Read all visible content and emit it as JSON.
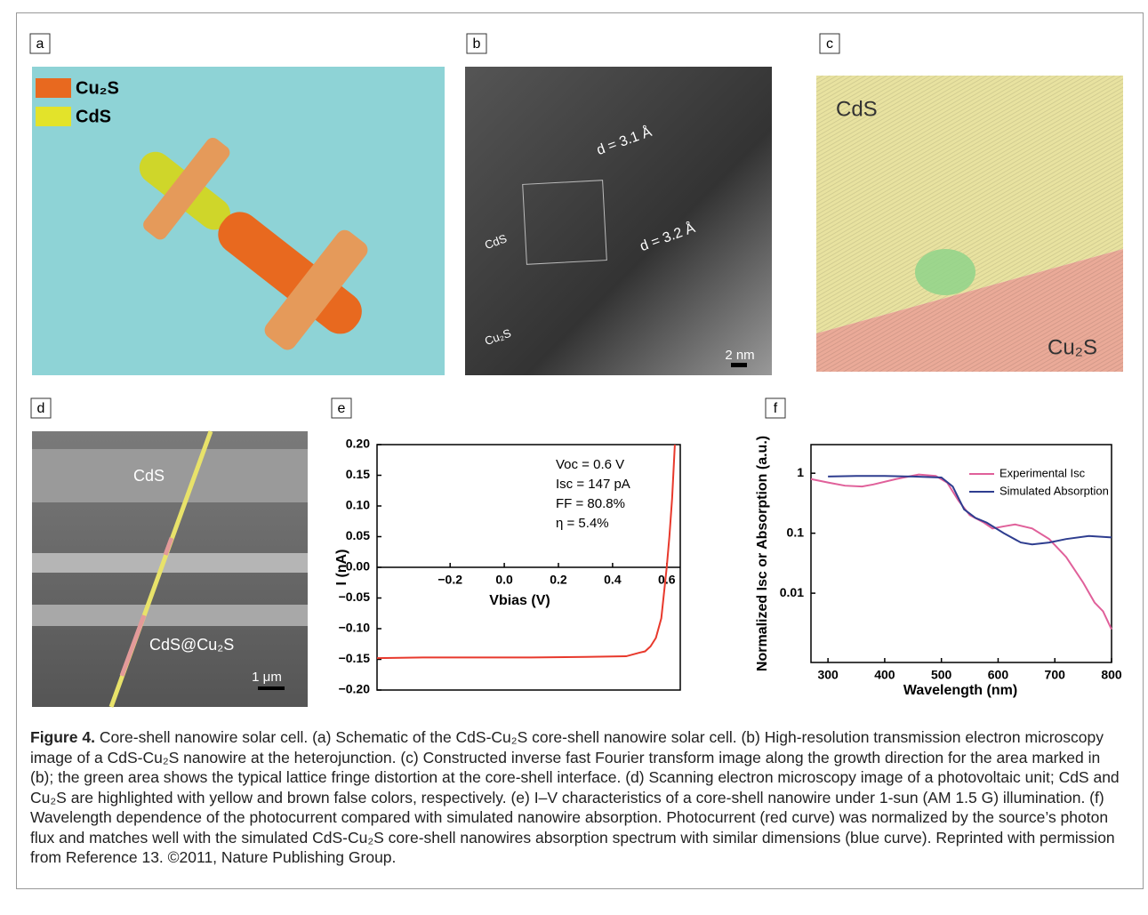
{
  "panels": [
    {
      "label": "a",
      "texts": [
        "Cu₂S",
        "CdS"
      ]
    },
    {
      "label": "b",
      "texts": [
        "d = 3.1 Å",
        "d = 3.2 Å",
        "CdS",
        "Cu₂S",
        "2 nm"
      ]
    },
    {
      "label": "c",
      "texts": [
        "CdS",
        "Cu₂S"
      ]
    },
    {
      "label": "d",
      "texts": [
        "CdS",
        "CdS@Cu₂S",
        "1 μm"
      ]
    }
  ],
  "chart_data": [
    {
      "type": "line",
      "panel_label": "e",
      "x_label": "Vbias (V)",
      "y_label": "I (nA)",
      "annotations": [
        "Voc = 0.6 V",
        "Isc = 147 pA",
        "FF = 80.8%",
        "η = 5.4%"
      ],
      "xlim": [
        -0.47,
        0.65
      ],
      "ylim": [
        -0.2,
        0.2
      ],
      "xticks": [
        {
          "value": -0.2,
          "label": "−0.2"
        },
        {
          "value": 0,
          "label": "0.0"
        },
        0.2,
        0.4,
        0.6
      ],
      "yticks": [
        {
          "value": 0.2,
          "label": "0.20"
        },
        {
          "value": 0.15,
          "label": "0.15"
        },
        {
          "value": 0.1,
          "label": "0.10"
        },
        {
          "value": 0.05,
          "label": "0.05"
        },
        {
          "value": 0,
          "label": "0.00"
        },
        {
          "value": -0.05,
          "label": "−0.05"
        },
        {
          "value": -0.1,
          "label": "−0.10"
        },
        {
          "value": -0.15,
          "label": "−0.15"
        },
        {
          "value": -0.2,
          "label": "−0.20"
        }
      ],
      "log": false,
      "series": [
        {
          "color": "#e8392c",
          "x": [
            -0.47,
            -0.3,
            -0.1,
            0.1,
            0.3,
            0.45,
            0.5,
            0.52,
            0.54,
            0.56,
            0.58,
            0.6,
            0.61,
            0.62,
            0.63
          ],
          "values": [
            -0.148,
            -0.147,
            -0.147,
            -0.147,
            -0.146,
            -0.145,
            -0.139,
            -0.137,
            -0.129,
            -0.115,
            -0.083,
            0,
            0.051,
            0.113,
            0.2
          ]
        }
      ]
    },
    {
      "type": "line",
      "panel_label": "f",
      "x_label": "Wavelength (nm)",
      "y_label": "Normalized Isc or Absorption (a.u.)",
      "xlim": [
        270,
        800
      ],
      "ylim": [
        0.0007,
        3
      ],
      "xticks": [
        300,
        400,
        500,
        600,
        700,
        800
      ],
      "yticks": [
        1,
        0.1,
        0.01
      ],
      "log": true,
      "series": [
        {
          "name": "Experimental Isc",
          "color": "#e0609a",
          "x": [
            270,
            300,
            330,
            360,
            380,
            420,
            460,
            490,
            510,
            530,
            550,
            575,
            590,
            610,
            630,
            660,
            690,
            720,
            750,
            770,
            785,
            800
          ],
          "values": [
            0.8,
            0.7,
            0.62,
            0.6,
            0.65,
            0.8,
            0.95,
            0.9,
            0.7,
            0.35,
            0.2,
            0.15,
            0.12,
            0.13,
            0.14,
            0.12,
            0.08,
            0.04,
            0.015,
            0.007,
            0.005,
            0.0025
          ]
        },
        {
          "name": "Simulated Absorption",
          "color": "#2e3d8f",
          "x": [
            300,
            350,
            400,
            450,
            500,
            520,
            540,
            560,
            580,
            610,
            640,
            660,
            690,
            720,
            760,
            800
          ],
          "values": [
            0.88,
            0.9,
            0.9,
            0.88,
            0.85,
            0.6,
            0.25,
            0.18,
            0.15,
            0.1,
            0.07,
            0.065,
            0.07,
            0.08,
            0.09,
            0.085
          ]
        }
      ]
    }
  ],
  "caption": {
    "label": "Figure 4.",
    "text": "Core-shell nanowire solar cell. (a) Schematic of the CdS-Cu₂S core-shell nanowire solar cell. (b) High-resolution transmission electron microscopy image of a CdS-Cu₂S nanowire at the heterojunction. (c) Constructed inverse fast Fourier transform image along the growth direction for the area marked in (b); the green area shows the typical lattice fringe distortion at the core-shell interface. (d) Scanning electron microscopy image of a photovoltaic unit; CdS and Cu₂S are highlighted with yellow and brown false colors, respectively. (e) I–V characteristics of a core-shell nanowire under 1-sun (AM 1.5 G) illumination. (f) Wavelength dependence of the photocurrent compared with simulated nanowire absorption. Photocurrent (red curve) was normalized by the source’s photon flux and matches well with the simulated CdS-Cu₂S core-shell nanowires absorption spectrum with similar dimensions (blue curve). Reprinted with permission from Reference 13. ©2011, Nature Publishing Group."
  }
}
